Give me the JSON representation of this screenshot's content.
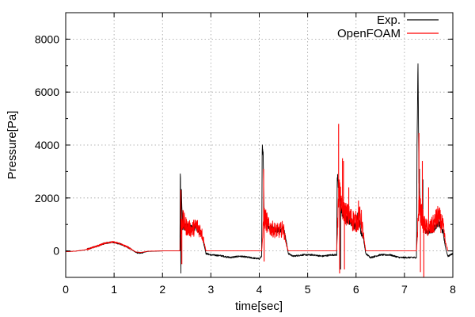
{
  "chart_data": {
    "type": "line",
    "title": "",
    "xlabel": "time[sec]",
    "ylabel": "Pressure[Pa]",
    "xlim": [
      0,
      8
    ],
    "ylim": [
      -1000,
      9000
    ],
    "x_ticks": [
      "0",
      "1",
      "2",
      "3",
      "4",
      "5",
      "6",
      "7",
      "8"
    ],
    "y_ticks": [
      "0",
      "2000",
      "4000",
      "6000",
      "8000"
    ],
    "grid": true,
    "legend_position": "top-right",
    "series": [
      {
        "name": "Exp.",
        "color": "#000000",
        "points": [
          [
            0.0,
            -30
          ],
          [
            0.2,
            -10
          ],
          [
            0.4,
            40
          ],
          [
            0.6,
            150
          ],
          [
            0.8,
            280
          ],
          [
            0.95,
            330
          ],
          [
            1.1,
            280
          ],
          [
            1.3,
            120
          ],
          [
            1.45,
            -60
          ],
          [
            1.55,
            -80
          ],
          [
            1.7,
            -20
          ],
          [
            2.0,
            0
          ],
          [
            2.3,
            0
          ],
          [
            2.36,
            0
          ],
          [
            2.37,
            3650
          ],
          [
            2.38,
            -800
          ],
          [
            2.39,
            2600
          ],
          [
            2.41,
            900
          ],
          [
            2.5,
            900
          ],
          [
            2.6,
            850
          ],
          [
            2.7,
            900
          ],
          [
            2.8,
            650
          ],
          [
            2.85,
            300
          ],
          [
            2.9,
            -100
          ],
          [
            3.0,
            -150
          ],
          [
            3.2,
            -180
          ],
          [
            3.4,
            -250
          ],
          [
            3.6,
            -200
          ],
          [
            3.8,
            -250
          ],
          [
            4.0,
            -300
          ],
          [
            4.05,
            -200
          ],
          [
            4.06,
            3900
          ],
          [
            4.08,
            3600
          ],
          [
            4.1,
            1300
          ],
          [
            4.2,
            900
          ],
          [
            4.3,
            800
          ],
          [
            4.4,
            800
          ],
          [
            4.5,
            850
          ],
          [
            4.55,
            450
          ],
          [
            4.6,
            -100
          ],
          [
            4.7,
            -200
          ],
          [
            4.9,
            -150
          ],
          [
            5.1,
            -150
          ],
          [
            5.3,
            -200
          ],
          [
            5.5,
            -150
          ],
          [
            5.6,
            -150
          ],
          [
            5.61,
            2900
          ],
          [
            5.63,
            2500
          ],
          [
            5.7,
            1500
          ],
          [
            5.8,
            1200
          ],
          [
            5.9,
            1100
          ],
          [
            6.0,
            900
          ],
          [
            6.05,
            1500
          ],
          [
            6.1,
            700
          ],
          [
            6.15,
            500
          ],
          [
            6.2,
            -100
          ],
          [
            6.3,
            -250
          ],
          [
            6.5,
            -150
          ],
          [
            6.7,
            -150
          ],
          [
            6.9,
            -250
          ],
          [
            7.1,
            -250
          ],
          [
            7.25,
            -250
          ],
          [
            7.26,
            4000
          ],
          [
            7.28,
            7150
          ],
          [
            7.3,
            2600
          ],
          [
            7.35,
            1200
          ],
          [
            7.45,
            700
          ],
          [
            7.6,
            800
          ],
          [
            7.7,
            1100
          ],
          [
            7.8,
            700
          ],
          [
            7.85,
            100
          ],
          [
            7.9,
            -200
          ],
          [
            8.0,
            -100
          ]
        ],
        "spikes": [
          [
            2.37,
            3650
          ],
          [
            2.38,
            -800
          ],
          [
            4.06,
            3900
          ],
          [
            4.08,
            3600
          ],
          [
            5.62,
            2900
          ],
          [
            5.68,
            -700
          ],
          [
            7.28,
            7150
          ],
          [
            7.31,
            3100
          ],
          [
            7.38,
            2700
          ]
        ]
      },
      {
        "name": "OpenFOAM",
        "color": "#ff0000",
        "points": [
          [
            0.0,
            -30
          ],
          [
            0.2,
            -10
          ],
          [
            0.4,
            40
          ],
          [
            0.6,
            150
          ],
          [
            0.8,
            290
          ],
          [
            0.95,
            340
          ],
          [
            1.1,
            290
          ],
          [
            1.3,
            130
          ],
          [
            1.45,
            -40
          ],
          [
            1.55,
            -60
          ],
          [
            1.7,
            -10
          ],
          [
            2.0,
            0
          ],
          [
            2.3,
            0
          ],
          [
            2.36,
            0
          ],
          [
            2.4,
            1200
          ],
          [
            2.5,
            900
          ],
          [
            2.6,
            800
          ],
          [
            2.7,
            950
          ],
          [
            2.8,
            750
          ],
          [
            2.85,
            400
          ],
          [
            2.9,
            0
          ],
          [
            3.0,
            0
          ],
          [
            3.5,
            0
          ],
          [
            4.0,
            0
          ],
          [
            4.05,
            0
          ],
          [
            4.1,
            1300
          ],
          [
            4.2,
            900
          ],
          [
            4.3,
            800
          ],
          [
            4.4,
            750
          ],
          [
            4.5,
            850
          ],
          [
            4.55,
            300
          ],
          [
            4.6,
            0
          ],
          [
            5.0,
            0
          ],
          [
            5.5,
            0
          ],
          [
            5.6,
            0
          ],
          [
            5.65,
            2500
          ],
          [
            5.7,
            1600
          ],
          [
            5.8,
            1400
          ],
          [
            5.9,
            1200
          ],
          [
            6.0,
            1100
          ],
          [
            6.1,
            1300
          ],
          [
            6.15,
            600
          ],
          [
            6.2,
            0
          ],
          [
            6.6,
            0
          ],
          [
            7.0,
            0
          ],
          [
            7.25,
            0
          ],
          [
            7.3,
            1800
          ],
          [
            7.4,
            1000
          ],
          [
            7.5,
            800
          ],
          [
            7.6,
            1000
          ],
          [
            7.7,
            1300
          ],
          [
            7.8,
            900
          ],
          [
            7.85,
            300
          ],
          [
            7.9,
            0
          ],
          [
            8.0,
            0
          ]
        ],
        "spikes": [
          [
            2.38,
            2300
          ],
          [
            2.4,
            -500
          ],
          [
            4.09,
            3100
          ],
          [
            4.1,
            -400
          ],
          [
            5.64,
            4800
          ],
          [
            5.66,
            -850
          ],
          [
            5.72,
            3500
          ],
          [
            5.74,
            3400
          ],
          [
            5.76,
            -700
          ],
          [
            5.85,
            2400
          ],
          [
            6.05,
            1900
          ],
          [
            7.3,
            4450
          ],
          [
            7.33,
            -800
          ],
          [
            7.37,
            3400
          ],
          [
            7.4,
            -1000
          ],
          [
            7.5,
            2400
          ]
        ]
      }
    ]
  }
}
